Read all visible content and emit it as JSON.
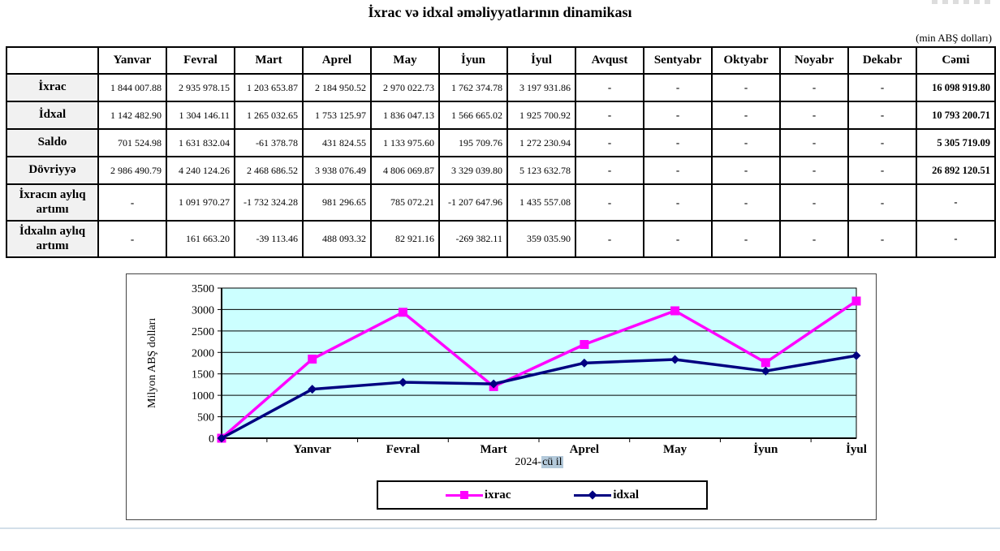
{
  "page": {
    "title": "İxrac və idxal əməliyyatlarının dinamikası",
    "unit_note": "(min ABŞ dolları)"
  },
  "table": {
    "columns": [
      "",
      "Yanvar",
      "Fevral",
      "Mart",
      "Aprel",
      "May",
      "İyun",
      "İyul",
      "Avqust",
      "Sentyabr",
      "Oktyabr",
      "Noyabr",
      "Dekabr",
      "Cəmi"
    ],
    "rows": [
      {
        "label": "İxrac",
        "values": [
          "1 844 007.88",
          "2 935 978.15",
          "1 203 653.87",
          "2 184 950.52",
          "2 970 022.73",
          "1 762 374.78",
          "3 197 931.86",
          "-",
          "-",
          "-",
          "-",
          "-",
          "16 098 919.80"
        ]
      },
      {
        "label": "İdxal",
        "values": [
          "1 142 482.90",
          "1 304 146.11",
          "1 265 032.65",
          "1 753 125.97",
          "1 836 047.13",
          "1 566 665.02",
          "1 925 700.92",
          "-",
          "-",
          "-",
          "-",
          "-",
          "10 793 200.71"
        ]
      },
      {
        "label": "Saldo",
        "values": [
          "701 524.98",
          "1 631 832.04",
          "-61 378.78",
          "431 824.55",
          "1 133 975.60",
          "195 709.76",
          "1 272 230.94",
          "-",
          "-",
          "-",
          "-",
          "-",
          "5 305 719.09"
        ]
      },
      {
        "label": "Dövriyyə",
        "values": [
          "2 986 490.79",
          "4 240 124.26",
          "2 468 686.52",
          "3 938 076.49",
          "4 806 069.87",
          "3 329 039.80",
          "5 123 632.78",
          "-",
          "-",
          "-",
          "-",
          "-",
          "26 892 120.51"
        ]
      },
      {
        "label": "İxracın aylıq artımı",
        "values": [
          "-",
          "1 091 970.27",
          "-1 732 324.28",
          "981 296.65",
          "785 072.21",
          "-1 207 647.96",
          "1 435 557.08",
          "-",
          "-",
          "-",
          "-",
          "-",
          "-"
        ]
      },
      {
        "label": "İdxalın aylıq artımı",
        "values": [
          "-",
          "161 663.20",
          "-39 113.46",
          "488 093.32",
          "82 921.16",
          "-269 382.11",
          "359 035.90",
          "-",
          "-",
          "-",
          "-",
          "-",
          "-"
        ]
      }
    ]
  },
  "chart_data": {
    "type": "line",
    "x": [
      "",
      "Yanvar",
      "Fevral",
      "Mart",
      "Aprel",
      "May",
      "İyun",
      "İyul"
    ],
    "series": [
      {
        "name": "ixrac",
        "color": "#FF00FF",
        "marker": "square",
        "values": [
          0,
          1844.01,
          2935.98,
          1203.65,
          2184.95,
          2970.02,
          1762.37,
          3197.93
        ]
      },
      {
        "name": "idxal",
        "color": "#000080",
        "marker": "diamond",
        "values": [
          0,
          1142.48,
          1304.15,
          1265.03,
          1753.13,
          1836.05,
          1566.67,
          1925.7
        ]
      }
    ],
    "title": "",
    "xlabel_prefix": "2024-",
    "xlabel_highlight": "cü il",
    "ylabel": "Milyon ABŞ dolları",
    "ylim": [
      0,
      3500
    ],
    "ytick_step": 500,
    "grid": true,
    "legend_position": "bottom",
    "plot_bg": "#CCFFFF"
  }
}
